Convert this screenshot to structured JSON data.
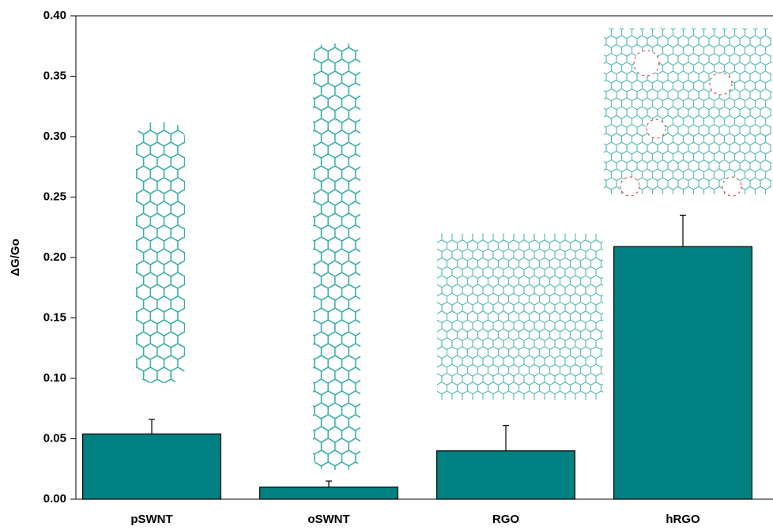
{
  "chart_data": {
    "type": "bar",
    "y_label": "ΔG/Go",
    "categories": [
      "pSWNT",
      "oSWNT",
      "RGO",
      "hRGO"
    ],
    "values": [
      0.054,
      0.01,
      0.04,
      0.209
    ],
    "errors": [
      0.012,
      0.005,
      0.021,
      0.026
    ],
    "color": "#008080",
    "ylim": [
      0,
      0.4
    ],
    "yticks": [
      {
        "value": 0,
        "label": "0.00"
      },
      {
        "value": 0.05,
        "label": "0.05"
      },
      {
        "value": 0.1,
        "label": "0.10"
      },
      {
        "value": 0.15,
        "label": "0.15"
      },
      {
        "value": 0.2,
        "label": "0.20"
      },
      {
        "value": 0.25,
        "label": "0.25"
      },
      {
        "value": 0.3,
        "label": "0.30"
      },
      {
        "value": 0.35,
        "label": "0.35"
      },
      {
        "value": 0.4,
        "label": "0.40"
      }
    ]
  }
}
